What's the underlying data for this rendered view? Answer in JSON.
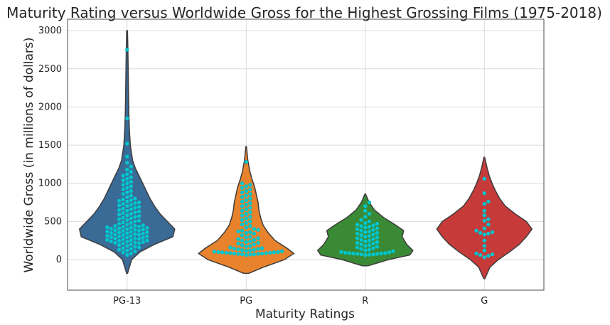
{
  "chart_data": {
    "type": "violin",
    "title": "Maturity Rating versus Worldwide Gross for the Highest Grossing Films (1975-2018)",
    "xlabel": "Maturity Ratings",
    "ylabel": "Worldwide Gross (in millions of dollars)",
    "ylim": [
      -400,
      3150
    ],
    "yticks": [
      0,
      500,
      1000,
      1500,
      2000,
      2500,
      3000
    ],
    "grid": true,
    "point_color": "#00c5cd",
    "categories": [
      "PG-13",
      "PG",
      "R",
      "G"
    ],
    "series": [
      {
        "name": "PG-13",
        "color": "#3a6a96",
        "violin_range": [
          -180,
          3000
        ],
        "profile": [
          [
            -180,
            0.005
          ],
          [
            0,
            0.05
          ],
          [
            100,
            0.14
          ],
          [
            200,
            0.3
          ],
          [
            300,
            0.5
          ],
          [
            400,
            0.52
          ],
          [
            500,
            0.44
          ],
          [
            600,
            0.36
          ],
          [
            700,
            0.3
          ],
          [
            800,
            0.25
          ],
          [
            900,
            0.21
          ],
          [
            1000,
            0.17
          ],
          [
            1100,
            0.13
          ],
          [
            1200,
            0.09
          ],
          [
            1300,
            0.06
          ],
          [
            1500,
            0.035
          ],
          [
            1700,
            0.025
          ],
          [
            1900,
            0.02
          ],
          [
            2200,
            0.015
          ],
          [
            2500,
            0.012
          ],
          [
            2800,
            0.008
          ],
          [
            3000,
            0.004
          ]
        ],
        "values": [
          60,
          80,
          95,
          110,
          120,
          130,
          140,
          150,
          160,
          170,
          180,
          190,
          200,
          210,
          215,
          220,
          225,
          230,
          235,
          240,
          245,
          250,
          255,
          260,
          265,
          270,
          275,
          280,
          285,
          290,
          295,
          300,
          305,
          310,
          315,
          320,
          325,
          330,
          335,
          340,
          345,
          350,
          355,
          360,
          365,
          370,
          375,
          380,
          385,
          390,
          395,
          400,
          405,
          410,
          415,
          420,
          425,
          430,
          435,
          440,
          445,
          450,
          460,
          470,
          480,
          490,
          500,
          510,
          520,
          530,
          540,
          550,
          560,
          570,
          580,
          590,
          600,
          610,
          620,
          630,
          640,
          650,
          660,
          670,
          680,
          690,
          700,
          710,
          720,
          730,
          740,
          750,
          760,
          770,
          780,
          790,
          800,
          820,
          840,
          860,
          880,
          900,
          920,
          940,
          960,
          980,
          1000,
          1020,
          1040,
          1060,
          1080,
          1100,
          1120,
          1150,
          1180,
          1220,
          1270,
          1350,
          1520,
          1850,
          2750
        ]
      },
      {
        "name": "PG",
        "color": "#e8822c",
        "violin_range": [
          -180,
          1480
        ],
        "profile": [
          [
            -180,
            0.03
          ],
          [
            -100,
            0.2
          ],
          [
            0,
            0.45
          ],
          [
            80,
            0.56
          ],
          [
            150,
            0.48
          ],
          [
            250,
            0.34
          ],
          [
            350,
            0.26
          ],
          [
            450,
            0.2
          ],
          [
            550,
            0.17
          ],
          [
            650,
            0.15
          ],
          [
            750,
            0.14
          ],
          [
            850,
            0.12
          ],
          [
            950,
            0.1
          ],
          [
            1050,
            0.07
          ],
          [
            1150,
            0.045
          ],
          [
            1300,
            0.02
          ],
          [
            1480,
            0.004
          ]
        ],
        "values": [
          60,
          65,
          70,
          70,
          75,
          75,
          80,
          80,
          85,
          85,
          90,
          90,
          95,
          95,
          100,
          100,
          105,
          110,
          115,
          120,
          125,
          130,
          135,
          140,
          145,
          150,
          160,
          170,
          180,
          190,
          200,
          210,
          220,
          230,
          240,
          250,
          260,
          270,
          280,
          290,
          300,
          320,
          340,
          350,
          360,
          370,
          380,
          390,
          400,
          420,
          440,
          460,
          480,
          500,
          520,
          540,
          560,
          580,
          600,
          620,
          640,
          660,
          680,
          700,
          720,
          740,
          760,
          780,
          800,
          820,
          840,
          860,
          880,
          900,
          920,
          940,
          960,
          980,
          1000,
          1280
        ]
      },
      {
        "name": "R",
        "color": "#3a8a35",
        "violin_range": [
          -80,
          860
        ],
        "profile": [
          [
            -80,
            0.04
          ],
          [
            0,
            0.3
          ],
          [
            60,
            0.58
          ],
          [
            120,
            0.62
          ],
          [
            200,
            0.54
          ],
          [
            300,
            0.48
          ],
          [
            380,
            0.5
          ],
          [
            450,
            0.4
          ],
          [
            550,
            0.24
          ],
          [
            650,
            0.12
          ],
          [
            750,
            0.05
          ],
          [
            860,
            0.004
          ]
        ],
        "values": [
          60,
          65,
          70,
          70,
          75,
          75,
          80,
          80,
          85,
          85,
          90,
          95,
          100,
          110,
          120,
          130,
          140,
          150,
          160,
          170,
          180,
          190,
          200,
          210,
          220,
          230,
          240,
          250,
          260,
          270,
          280,
          290,
          300,
          310,
          320,
          330,
          340,
          350,
          360,
          370,
          380,
          390,
          400,
          410,
          420,
          430,
          440,
          450,
          460,
          470,
          480,
          500,
          520,
          560,
          600,
          640,
          700,
          750
        ]
      },
      {
        "name": "G",
        "color": "#c63a3a",
        "violin_range": [
          -250,
          1340
        ],
        "profile": [
          [
            -250,
            0.004
          ],
          [
            -100,
            0.04
          ],
          [
            0,
            0.1
          ],
          [
            100,
            0.18
          ],
          [
            200,
            0.25
          ],
          [
            300,
            0.3
          ],
          [
            400,
            0.34
          ],
          [
            500,
            0.3
          ],
          [
            600,
            0.22
          ],
          [
            700,
            0.15
          ],
          [
            800,
            0.11
          ],
          [
            900,
            0.08
          ],
          [
            1000,
            0.055
          ],
          [
            1100,
            0.035
          ],
          [
            1200,
            0.02
          ],
          [
            1340,
            0.003
          ]
        ],
        "values": [
          30,
          50,
          60,
          70,
          80,
          120,
          180,
          250,
          330,
          340,
          350,
          360,
          380,
          410,
          460,
          510,
          530,
          580,
          640,
          730,
          760,
          870,
          1060
        ]
      }
    ]
  }
}
